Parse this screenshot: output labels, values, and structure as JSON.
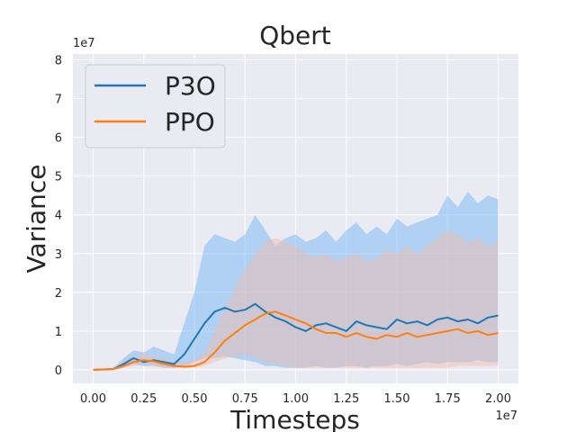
{
  "chart_data": {
    "type": "line",
    "title": "Qbert",
    "xlabel": "Timesteps",
    "ylabel": "Variance",
    "x_multiplier_label": "1e7",
    "y_multiplier_label": "1e7",
    "xlim": [
      -0.1,
      2.1
    ],
    "ylim": [
      -0.35,
      8.15
    ],
    "x_ticks": [
      0.0,
      0.25,
      0.5,
      0.75,
      1.0,
      1.25,
      1.5,
      1.75,
      2.0
    ],
    "x_tick_labels": [
      "0.00",
      "0.25",
      "0.50",
      "0.75",
      "1.00",
      "1.25",
      "1.50",
      "1.75",
      "2.00"
    ],
    "y_ticks": [
      0,
      1,
      2,
      3,
      4,
      5,
      6,
      7,
      8
    ],
    "y_tick_labels": [
      "0",
      "1",
      "2",
      "3",
      "4",
      "5",
      "6",
      "7",
      "8"
    ],
    "grid": true,
    "legend_position": "top-left",
    "x": [
      0.0,
      0.1,
      0.15,
      0.2,
      0.25,
      0.3,
      0.35,
      0.4,
      0.45,
      0.5,
      0.55,
      0.6,
      0.65,
      0.7,
      0.75,
      0.8,
      0.85,
      0.9,
      0.95,
      1.0,
      1.05,
      1.1,
      1.15,
      1.2,
      1.25,
      1.3,
      1.35,
      1.4,
      1.45,
      1.5,
      1.55,
      1.6,
      1.65,
      1.7,
      1.75,
      1.8,
      1.85,
      1.9,
      1.95,
      2.0
    ],
    "series": [
      {
        "name": "P3O",
        "color": "#1f77b4",
        "band_color": "#7fbcf5",
        "values": [
          0.0,
          0.02,
          0.15,
          0.3,
          0.2,
          0.25,
          0.2,
          0.15,
          0.4,
          0.8,
          1.2,
          1.5,
          1.6,
          1.5,
          1.55,
          1.7,
          1.5,
          1.35,
          1.25,
          1.1,
          1.0,
          1.15,
          1.2,
          1.1,
          1.0,
          1.25,
          1.15,
          1.1,
          1.05,
          1.3,
          1.2,
          1.25,
          1.15,
          1.3,
          1.35,
          1.25,
          1.3,
          1.2,
          1.35,
          1.4
        ],
        "lower": [
          0.0,
          0.0,
          0.05,
          0.15,
          0.1,
          0.1,
          0.05,
          0.05,
          0.1,
          0.2,
          0.3,
          0.3,
          0.35,
          0.3,
          0.25,
          0.2,
          0.1,
          0.1,
          0.05,
          0.05,
          0.05,
          0.1,
          0.05,
          0.05,
          0.1,
          0.1,
          0.05,
          0.1,
          0.1,
          0.15,
          0.1,
          0.15,
          0.2,
          0.15,
          0.2,
          0.2,
          0.2,
          0.25,
          0.2,
          0.2
        ],
        "upper": [
          0.0,
          0.05,
          0.3,
          0.5,
          0.45,
          0.6,
          0.5,
          0.4,
          1.2,
          2.0,
          3.2,
          3.5,
          3.4,
          3.3,
          3.5,
          4.0,
          3.6,
          3.2,
          3.4,
          3.5,
          3.3,
          3.4,
          3.6,
          3.3,
          3.6,
          3.8,
          3.5,
          3.7,
          3.5,
          3.9,
          3.7,
          3.8,
          3.9,
          4.0,
          4.5,
          4.2,
          4.6,
          4.3,
          4.5,
          4.4
        ]
      },
      {
        "name": "PPO",
        "color": "#ff7f0e",
        "band_color": "#f4b8a6",
        "values": [
          0.0,
          0.02,
          0.1,
          0.2,
          0.25,
          0.22,
          0.15,
          0.1,
          0.08,
          0.1,
          0.2,
          0.45,
          0.75,
          0.95,
          1.15,
          1.3,
          1.45,
          1.5,
          1.4,
          1.3,
          1.2,
          1.05,
          0.95,
          0.95,
          0.85,
          0.95,
          0.85,
          0.8,
          0.9,
          0.85,
          0.95,
          0.85,
          0.9,
          0.95,
          1.0,
          1.05,
          0.95,
          1.0,
          0.9,
          0.95
        ],
        "lower": [
          0.0,
          0.0,
          0.05,
          0.1,
          0.15,
          0.1,
          0.05,
          0.05,
          0.05,
          0.05,
          0.1,
          0.2,
          0.3,
          0.35,
          0.4,
          0.3,
          0.2,
          0.15,
          0.1,
          0.05,
          0.05,
          0.05,
          0.05,
          0.05,
          0.05,
          0.05,
          0.05,
          0.05,
          0.05,
          0.05,
          0.05,
          0.05,
          0.05,
          0.05,
          0.05,
          0.1,
          0.1,
          0.1,
          0.1,
          0.1
        ],
        "upper": [
          0.0,
          0.05,
          0.2,
          0.35,
          0.4,
          0.35,
          0.3,
          0.2,
          0.2,
          0.25,
          0.45,
          1.0,
          1.6,
          2.1,
          2.6,
          3.0,
          3.3,
          3.4,
          3.3,
          3.2,
          3.0,
          2.9,
          3.0,
          2.8,
          2.9,
          3.0,
          2.8,
          2.9,
          3.1,
          3.0,
          3.2,
          3.0,
          3.2,
          3.4,
          3.6,
          3.5,
          3.3,
          3.4,
          3.2,
          3.3
        ]
      }
    ]
  },
  "colors": {
    "plot_background": "#eaeaf2",
    "grid": "#ffffff",
    "text": "#262626"
  }
}
